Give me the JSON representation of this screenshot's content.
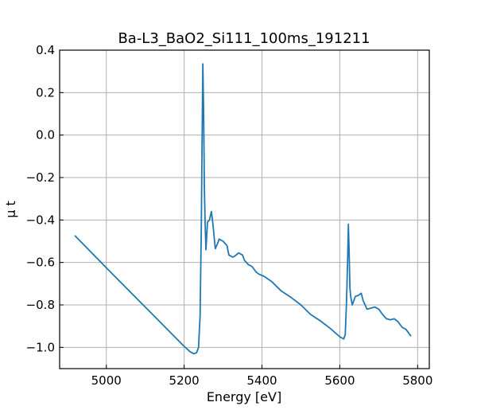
{
  "chart_data": {
    "type": "line",
    "title": "Ba-L3_BaO2_Si111_100ms_191211",
    "xlabel": "Energy [eV]",
    "ylabel": "μ t",
    "xlim": [
      4880,
      5830
    ],
    "ylim": [
      -1.1,
      0.4
    ],
    "xticks": [
      5000,
      5200,
      5400,
      5600,
      5800
    ],
    "yticks": [
      -1.0,
      -0.8,
      -0.6,
      -0.4,
      -0.2,
      0.0,
      0.2,
      0.4
    ],
    "xtick_labels": [
      "5000",
      "5200",
      "5400",
      "5600",
      "5800"
    ],
    "ytick_labels": [
      "−1.0",
      "−0.8",
      "−0.6",
      "−0.4",
      "−0.2",
      "0.0",
      "0.2",
      "0.4"
    ],
    "grid": true,
    "colors": {
      "series": "#1f77b4"
    },
    "series": [
      {
        "x": [
          4920,
          5000,
          5100,
          5200,
          5215,
          5225,
          5232,
          5237,
          5241,
          5244,
          5246,
          5248,
          5250,
          5252,
          5254,
          5256,
          5260,
          5265,
          5270,
          5274,
          5280,
          5286,
          5290,
          5300,
          5310,
          5315,
          5325,
          5330,
          5340,
          5350,
          5355,
          5365,
          5375,
          5385,
          5392,
          5405,
          5425,
          5450,
          5475,
          5500,
          5525,
          5550,
          5575,
          5600,
          5610,
          5614,
          5617,
          5620,
          5622,
          5624,
          5626,
          5628,
          5632,
          5640,
          5648,
          5655,
          5660,
          5670,
          5680,
          5690,
          5700,
          5710,
          5720,
          5730,
          5740,
          5750,
          5760,
          5770,
          5782
        ],
        "y": [
          -0.475,
          -0.625,
          -0.81,
          -0.995,
          -1.02,
          -1.03,
          -1.025,
          -1.0,
          -0.85,
          -0.45,
          -0.05,
          0.335,
          0.12,
          -0.25,
          -0.42,
          -0.54,
          -0.41,
          -0.4,
          -0.36,
          -0.42,
          -0.535,
          -0.51,
          -0.49,
          -0.5,
          -0.52,
          -0.565,
          -0.575,
          -0.57,
          -0.555,
          -0.565,
          -0.59,
          -0.61,
          -0.62,
          -0.645,
          -0.655,
          -0.665,
          -0.69,
          -0.735,
          -0.765,
          -0.8,
          -0.845,
          -0.875,
          -0.91,
          -0.95,
          -0.96,
          -0.94,
          -0.8,
          -0.6,
          -0.42,
          -0.55,
          -0.72,
          -0.76,
          -0.8,
          -0.76,
          -0.755,
          -0.745,
          -0.78,
          -0.82,
          -0.815,
          -0.81,
          -0.82,
          -0.845,
          -0.865,
          -0.87,
          -0.865,
          -0.88,
          -0.905,
          -0.915,
          -0.945
        ]
      }
    ]
  }
}
